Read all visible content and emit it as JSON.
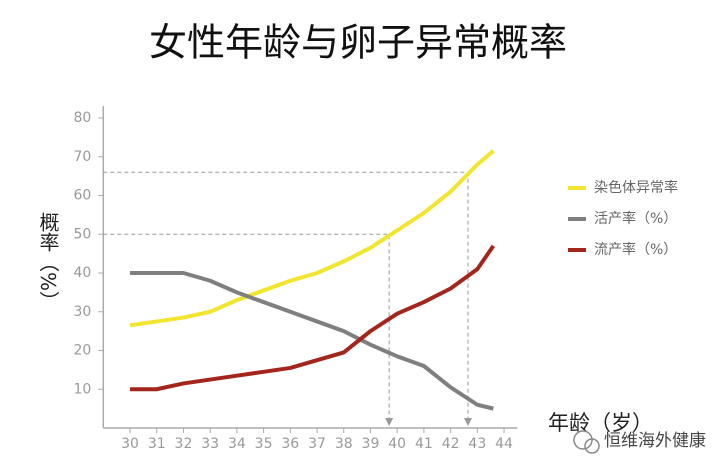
{
  "chart_data": {
    "type": "line",
    "title": "女性年龄与卵子异常概率",
    "y_label": "概率（%）",
    "x_label": "年龄（岁）",
    "x": [
      30,
      31,
      32,
      33,
      34,
      35,
      36,
      37,
      38,
      39,
      40,
      41,
      42,
      43,
      43.6
    ],
    "series": [
      {
        "name": "染色体异常率",
        "color": "#f2e530",
        "values": [
          26.5,
          27.5,
          28.5,
          30,
          33,
          35.5,
          38,
          40,
          43,
          46.5,
          51,
          55.5,
          61,
          68,
          71.5
        ]
      },
      {
        "name": "活产率（%）",
        "color": "#7f7f7f",
        "values": [
          40,
          40,
          40,
          38,
          35,
          32.5,
          30,
          27.5,
          25,
          21.5,
          18.5,
          16,
          10.5,
          6,
          5
        ]
      },
      {
        "name": "流产率（%）",
        "color": "#a3261c",
        "values": [
          10,
          10,
          11.5,
          12.5,
          13.5,
          14.5,
          15.5,
          17.5,
          19.5,
          25,
          29.5,
          32.5,
          36,
          41,
          47
        ]
      }
    ],
    "guides": [
      {
        "x": 39.7,
        "y": 50
      },
      {
        "x": 42.65,
        "y": 66
      }
    ],
    "xlim": [
      29,
      44.5
    ],
    "ylim": [
      0,
      80
    ],
    "xticks": [
      30,
      31,
      32,
      33,
      34,
      35,
      36,
      37,
      38,
      39,
      40,
      41,
      42,
      43,
      44
    ],
    "yticks": [
      10,
      20,
      30,
      40,
      50,
      60,
      70,
      80
    ],
    "legend": "right",
    "watermark": "恒维海外健康"
  }
}
